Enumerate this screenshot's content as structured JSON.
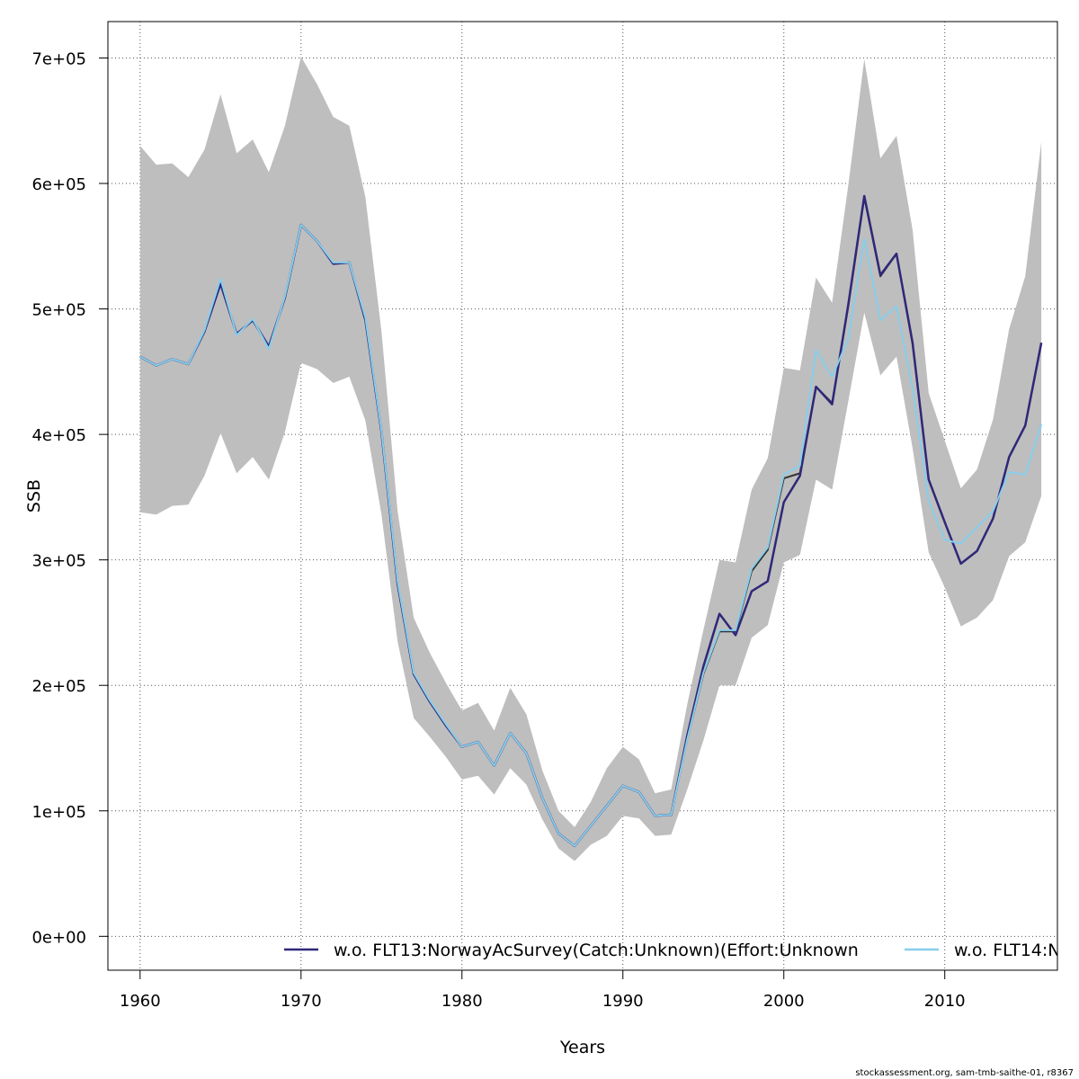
{
  "chart_data": {
    "type": "line",
    "xlabel": "Years",
    "ylabel": "SSB",
    "xlim": [
      1958,
      2017
    ],
    "ylim": [
      -27000,
      729000
    ],
    "grid": true,
    "x_ticks": [
      1960,
      1970,
      1980,
      1990,
      2000,
      2010
    ],
    "x_tick_labels": [
      "1960",
      "1970",
      "1980",
      "1990",
      "2000",
      "2010"
    ],
    "y_ticks": [
      0,
      100000,
      200000,
      300000,
      400000,
      500000,
      600000,
      700000
    ],
    "y_tick_labels": [
      "0e+00",
      "1e+05",
      "2e+05",
      "3e+05",
      "4e+05",
      "5e+05",
      "6e+05",
      "7e+05"
    ],
    "years": [
      1960,
      1961,
      1962,
      1963,
      1964,
      1965,
      1966,
      1967,
      1968,
      1969,
      1970,
      1971,
      1972,
      1973,
      1974,
      1975,
      1976,
      1977,
      1978,
      1979,
      1980,
      1981,
      1982,
      1983,
      1984,
      1985,
      1986,
      1987,
      1988,
      1989,
      1990,
      1991,
      1992,
      1993,
      1994,
      1995,
      1996,
      1997,
      1998,
      1999,
      2000,
      2001,
      2002,
      2003,
      2004,
      2005,
      2006,
      2007,
      2008,
      2009,
      2010,
      2011,
      2012,
      2013,
      2014,
      2015,
      2016
    ],
    "band_upper": [
      630000,
      615000,
      616000,
      605000,
      627000,
      671000,
      624000,
      635000,
      609000,
      646000,
      701000,
      679000,
      653000,
      646000,
      589000,
      482000,
      339000,
      254000,
      226000,
      202000,
      180000,
      186000,
      164000,
      198000,
      177000,
      132000,
      100000,
      87000,
      107000,
      134000,
      151000,
      141000,
      114000,
      117000,
      185000,
      244000,
      300000,
      298000,
      356000,
      381000,
      453000,
      451000,
      525000,
      505000,
      598000,
      699000,
      620000,
      638000,
      563000,
      433000,
      395000,
      357000,
      372000,
      412000,
      484000,
      526000,
      633000
    ],
    "band_lower": [
      338000,
      336000,
      343000,
      344000,
      367000,
      401000,
      369000,
      382000,
      364000,
      402000,
      457000,
      452000,
      441000,
      446000,
      411000,
      336000,
      235000,
      174000,
      159000,
      143000,
      125000,
      128000,
      113000,
      134000,
      121000,
      93000,
      70000,
      60000,
      73000,
      80000,
      96000,
      94000,
      80000,
      81000,
      117000,
      156000,
      200000,
      200000,
      238000,
      248000,
      298000,
      304000,
      364000,
      356000,
      426000,
      497000,
      447000,
      462000,
      389000,
      306000,
      278000,
      247000,
      254000,
      268000,
      303000,
      314000,
      351000
    ],
    "series": [
      {
        "name": "",
        "color": "#333333",
        "values": [
          462000,
          455000,
          460000,
          456000,
          482000,
          520000,
          480000,
          491000,
          470000,
          509000,
          567000,
          554000,
          536000,
          537000,
          491000,
          402000,
          281000,
          209000,
          187000,
          168000,
          151000,
          155000,
          136000,
          162000,
          146000,
          110000,
          82000,
          72000,
          88000,
          104000,
          120000,
          115000,
          96000,
          97000,
          157000,
          209000,
          243000,
          243000,
          291000,
          308000,
          365000,
          369000,
          438000,
          425000,
          502000,
          589000,
          526000,
          544000,
          472000,
          364000,
          330000,
          297000,
          307000,
          333000,
          382000,
          407000,
          473000
        ]
      },
      {
        "name": "w.o. FLT13:NorwayAcSurvey(Catch:Unknown)(Effort:Unknown",
        "color": "#2f2879",
        "values": [
          462000,
          455000,
          460000,
          456000,
          482000,
          520000,
          480000,
          491000,
          470000,
          509000,
          567000,
          554000,
          536000,
          537000,
          491000,
          402000,
          281000,
          209000,
          187000,
          168000,
          151000,
          155000,
          136000,
          162000,
          146000,
          110000,
          82000,
          72000,
          88000,
          104000,
          120000,
          115000,
          96000,
          97000,
          160000,
          215000,
          257000,
          240000,
          275000,
          283000,
          346000,
          367000,
          438000,
          424000,
          503000,
          590000,
          527000,
          544000,
          473000,
          364000,
          330000,
          297000,
          307000,
          333000,
          382000,
          407000,
          473000
        ]
      },
      {
        "name": "w.o. FLT14:N",
        "color": "#87ceeb",
        "values": [
          462000,
          455000,
          460000,
          456000,
          483000,
          524000,
          479000,
          492000,
          468000,
          510000,
          567000,
          554000,
          537000,
          537000,
          493000,
          403000,
          283000,
          210000,
          188000,
          169000,
          151000,
          155000,
          136000,
          162000,
          146000,
          110000,
          82000,
          72000,
          88000,
          104000,
          120000,
          115000,
          96000,
          97000,
          157000,
          210000,
          244000,
          244000,
          293000,
          310000,
          368000,
          375000,
          467000,
          446000,
          476000,
          556000,
          491000,
          502000,
          437000,
          347000,
          316000,
          313000,
          326000,
          339000,
          370000,
          368000,
          408000
        ]
      }
    ],
    "band_color": "#bebebe",
    "legend_position": "bottom-center",
    "footer": "stockassessment.org, sam-tmb-saithe-01, r8367"
  }
}
